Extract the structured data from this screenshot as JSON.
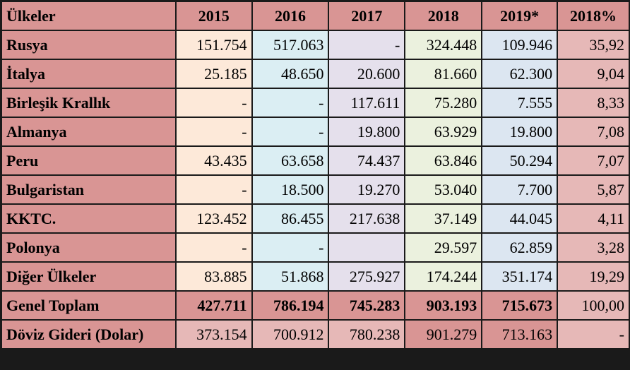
{
  "table": {
    "headers": [
      "Ülkeler",
      "2015",
      "2016",
      "2017",
      "2018",
      "2019*",
      "2018%"
    ],
    "rows": [
      {
        "country": "Rusya",
        "y2015": "151.754",
        "y2016": "517.063",
        "y2017": "-",
        "y2018": "324.448",
        "y2019": "109.946",
        "pct": "35,92"
      },
      {
        "country": "İtalya",
        "y2015": "25.185",
        "y2016": "48.650",
        "y2017": "20.600",
        "y2018": "81.660",
        "y2019": "62.300",
        "pct": "9,04"
      },
      {
        "country": "Birleşik Krallık",
        "y2015": "-",
        "y2016": "-",
        "y2017": "117.611",
        "y2018": "75.280",
        "y2019": "7.555",
        "pct": "8,33"
      },
      {
        "country": "Almanya",
        "y2015": "-",
        "y2016": "-",
        "y2017": "19.800",
        "y2018": "63.929",
        "y2019": "19.800",
        "pct": "7,08"
      },
      {
        "country": "Peru",
        "y2015": "43.435",
        "y2016": "63.658",
        "y2017": "74.437",
        "y2018": "63.846",
        "y2019": "50.294",
        "pct": "7,07"
      },
      {
        "country": "Bulgaristan",
        "y2015": "-",
        "y2016": "18.500",
        "y2017": "19.270",
        "y2018": "53.040",
        "y2019": "7.700",
        "pct": "5,87"
      },
      {
        "country": "KKTC.",
        "y2015": "123.452",
        "y2016": "86.455",
        "y2017": "217.638",
        "y2018": "37.149",
        "y2019": "44.045",
        "pct": "4,11"
      },
      {
        "country": "Polonya",
        "y2015": "-",
        "y2016": "-",
        "y2017": "",
        "y2018": "29.597",
        "y2019": "62.859",
        "pct": "3,28"
      },
      {
        "country": "Diğer Ülkeler",
        "y2015": "83.885",
        "y2016": "51.868",
        "y2017": "275.927",
        "y2018": "174.244",
        "y2019": "351.174",
        "pct": "19,29"
      }
    ],
    "total": {
      "label": "Genel Toplam",
      "y2015": "427.711",
      "y2016": "786.194",
      "y2017": "745.283",
      "y2018": "903.193",
      "y2019": "715.673",
      "pct": "100,00"
    },
    "fx": {
      "label": "Döviz Gideri (Dolar)",
      "y2015": "373.154",
      "y2016": "700.912",
      "y2017": "780.238",
      "y2018": "901.279",
      "y2019": "713.163",
      "pct": "-"
    }
  },
  "colors": {
    "header": "#d99594",
    "col2015": "#fde9d9",
    "col2016": "#dbeef3",
    "col2017": "#e5e0ec",
    "col2018": "#ebf1de",
    "col2019": "#dce6f1",
    "colpct": "#e6b8b7"
  }
}
